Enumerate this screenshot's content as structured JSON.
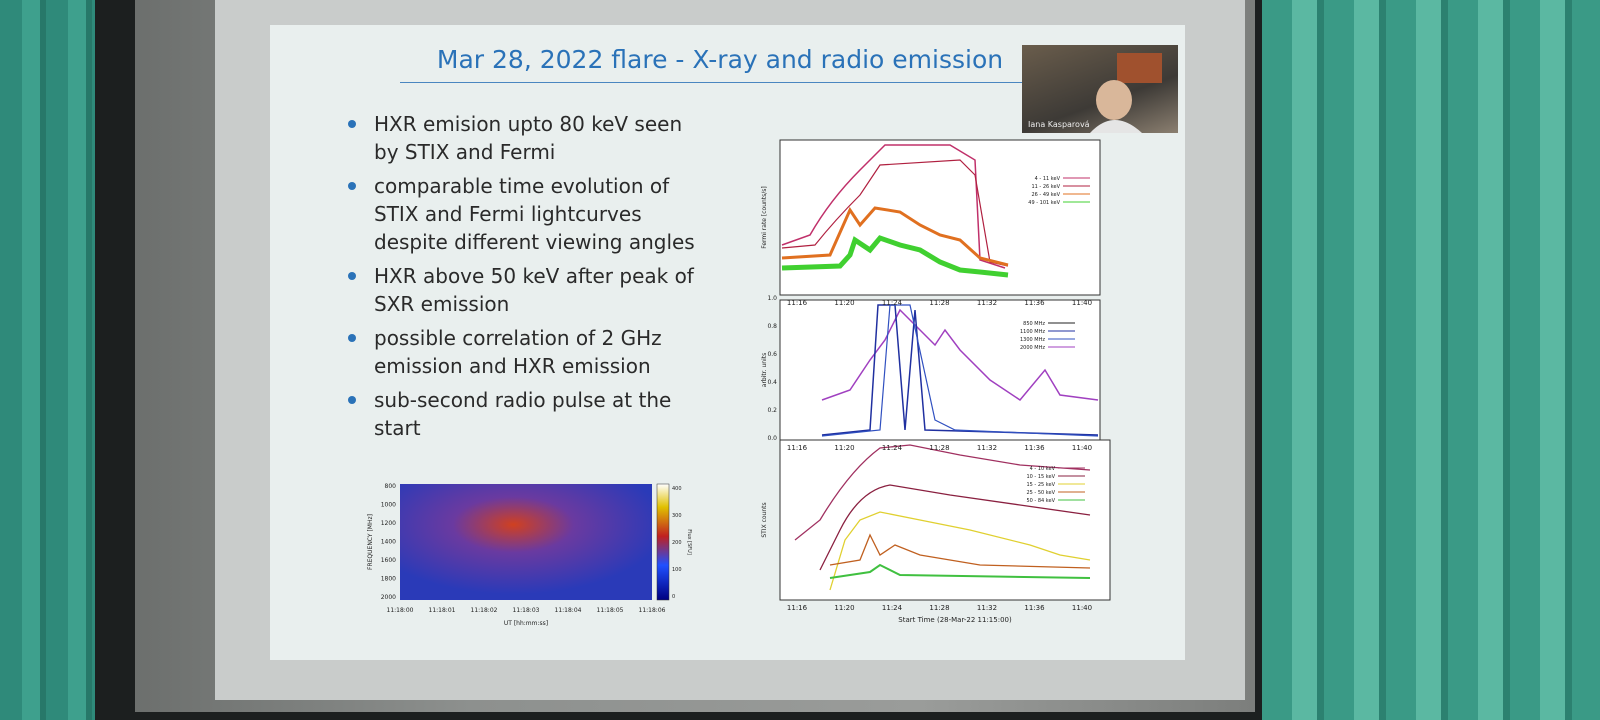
{
  "slide": {
    "title": "Mar 28, 2022 flare - X-ray and radio emission",
    "bullets": [
      "HXR emision upto 80 keV seen by STIX and Fermi",
      "comparable time evolution of STIX and Fermi lightcurves despite different viewing angles",
      "HXR above 50 keV after peak of SXR emission",
      "possible correlation of 2 GHz emission and HXR emission",
      "sub-second radio pulse at the start"
    ]
  },
  "video": {
    "name": "Iana Kasparová"
  },
  "spectrogram": {
    "y_label": "FREQUENCY [MHz]",
    "y_ticks": [
      "800",
      "1000",
      "1200",
      "1400",
      "1600",
      "1800",
      "2000"
    ],
    "x_label": "UT [hh:mm:ss]",
    "x_ticks": [
      "11:18:00",
      "11:18:01",
      "11:18:02",
      "11:18:03",
      "11:18:04",
      "11:18:05",
      "11:18:06"
    ],
    "colorbar_label": "Flux [SFU]",
    "colorbar_ticks": [
      "400",
      "300",
      "200",
      "100",
      "0"
    ]
  },
  "fermi": {
    "y_label": "Fermi rate [counts/s]",
    "legend": [
      "4 - 11 keV",
      "11 - 26 keV",
      "26 - 49 keV",
      "49 - 101 keV"
    ],
    "x_ticks": [
      "11:16",
      "11:20",
      "11:24",
      "11:28",
      "11:32",
      "11:36",
      "11:40"
    ]
  },
  "radio": {
    "y_label": "arbitr. units",
    "y_ticks": [
      "0.0",
      "0.2",
      "0.4",
      "0.6",
      "0.8",
      "1.0"
    ],
    "legend": [
      "850 MHz",
      "1100 MHz",
      "1300 MHz",
      "2000 MHz"
    ],
    "x_ticks": [
      "11:16",
      "11:20",
      "11:24",
      "11:28",
      "11:32",
      "11:36",
      "11:40"
    ]
  },
  "stix": {
    "y_label": "STIX counts",
    "legend": [
      "4 - 10 keV",
      "10 - 15 keV",
      "15 - 25 keV",
      "25 - 50 keV",
      "50 - 84 keV"
    ],
    "x_ticks": [
      "11:16",
      "11:20",
      "11:24",
      "11:28",
      "11:32",
      "11:36",
      "11:40"
    ],
    "x_label": "Start Time (28-Mar-22 11:15:00)"
  }
}
